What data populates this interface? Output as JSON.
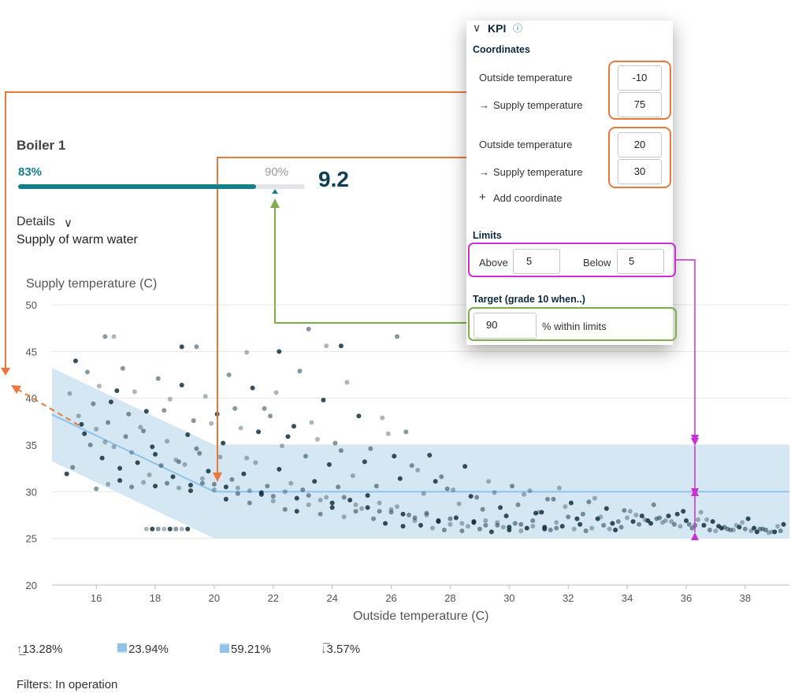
{
  "boiler": {
    "title": "Boiler 1",
    "percent_within": "83%",
    "target_percent": "90%",
    "progress_fraction": 0.83,
    "target_fraction": 0.9,
    "grade": "9.2",
    "details_label": "Details",
    "subtitle": "Supply of warm water"
  },
  "kpi_panel": {
    "title": "KPI",
    "coordinates_heading": "Coordinates",
    "coordinates": [
      {
        "outside_label": "Outside temperature",
        "outside_value": "-10",
        "supply_label": "Supply temperature",
        "supply_value": "75"
      },
      {
        "outside_label": "Outside temperature",
        "outside_value": "20",
        "supply_label": "Supply temperature",
        "supply_value": "30"
      }
    ],
    "add_coordinate_label": "Add coordinate",
    "limits_heading": "Limits",
    "above_label": "Above",
    "above_value": "5",
    "below_label": "Below",
    "below_value": "5",
    "target_heading": "Target (grade 10 when..)",
    "target_value": "90",
    "target_suffix": "% within limits"
  },
  "legend": [
    {
      "icon": "arrow-up-icon",
      "value": "13.28%"
    },
    {
      "icon": "band-lower-icon",
      "value": "23.94%"
    },
    {
      "icon": "band-upper-icon",
      "value": "59.21%"
    },
    {
      "icon": "arrow-down-icon",
      "value": "3.57%"
    }
  ],
  "filters": "Filters: In operation",
  "colors": {
    "teal": "#157f8a",
    "band": "#cfe4f2",
    "center_line": "#8fc3ea",
    "point": "#12303f",
    "annotation_orange": "#e8793a",
    "annotation_magenta": "#cc2fd6",
    "annotation_green": "#7cae4a"
  },
  "chart_data": {
    "type": "scatter",
    "xlabel": "Outside temperature (C)",
    "ylabel": "Supply temperature (C)",
    "xlim": [
      14.5,
      39.5
    ],
    "ylim": [
      20,
      50
    ],
    "xticks": [
      16,
      18,
      20,
      22,
      24,
      26,
      28,
      30,
      32,
      34,
      36,
      38
    ],
    "yticks": [
      20,
      25,
      30,
      35,
      40,
      45,
      50
    ],
    "grid": "horizontal",
    "target_curve": {
      "x": [
        14.5,
        20,
        39.5
      ],
      "y": [
        38.25,
        30,
        30
      ]
    },
    "band_upper": {
      "x": [
        14.5,
        20,
        39.5
      ],
      "y": [
        43.25,
        35,
        35
      ]
    },
    "band_lower": {
      "x": [
        14.5,
        20,
        39.5
      ],
      "y": [
        33.25,
        25,
        25
      ]
    },
    "series": [
      {
        "x": [
          15.0,
          15.2,
          15.4,
          15.6,
          15.8,
          16.0,
          16.2,
          16.4,
          16.6,
          16.8,
          17.0,
          17.2,
          17.4,
          17.6,
          17.8,
          18.0,
          18.2,
          18.4,
          18.6,
          18.8,
          19.0,
          19.2,
          19.4,
          19.6,
          19.8,
          20.0,
          20.2,
          20.4,
          20.6,
          20.8,
          21.0,
          21.2,
          21.4,
          21.6,
          21.8,
          22.0,
          22.2,
          22.4,
          22.6,
          22.8,
          23.0,
          23.2,
          23.4,
          23.6,
          23.8,
          24.0,
          24.2,
          24.4,
          24.6,
          24.8,
          25.0,
          25.2,
          25.4,
          25.6,
          25.8,
          26.0,
          26.2,
          26.4,
          26.6,
          26.8,
          27.0,
          27.2,
          27.4,
          27.6,
          27.8,
          28.0,
          28.2,
          28.4,
          28.6,
          28.8,
          29.0,
          29.2,
          29.4,
          29.6,
          29.8,
          30.0,
          30.2,
          30.4,
          30.6,
          30.8,
          31.0,
          31.2,
          31.4,
          31.6,
          31.8,
          32.0,
          32.2,
          32.4,
          32.6,
          32.8,
          33.0,
          33.2,
          33.4,
          33.6,
          33.8,
          34.0,
          34.2,
          34.4,
          34.6,
          34.8,
          35.0,
          35.2,
          35.4,
          35.6,
          35.8,
          36.0,
          36.2,
          36.4,
          36.6,
          36.8,
          37.0,
          37.2,
          37.4,
          37.6,
          37.8,
          38.0,
          38.2,
          38.4,
          38.6,
          38.8,
          39.0,
          39.2,
          15.1,
          15.5,
          15.9,
          16.3,
          16.7,
          17.1,
          17.5,
          17.9,
          18.3,
          18.7,
          19.1,
          19.5,
          19.9,
          20.3,
          20.7,
          21.1,
          21.5,
          21.9,
          22.3,
          22.7,
          23.1,
          23.5,
          23.9,
          24.3,
          24.7,
          25.1,
          25.5,
          25.9,
          26.3,
          26.7,
          27.1,
          27.5,
          27.9,
          28.3,
          28.7,
          29.1,
          29.5,
          29.9,
          30.3,
          30.7,
          31.1,
          31.5,
          31.9,
          32.3,
          32.7,
          33.1,
          33.5,
          33.9,
          34.3,
          34.7,
          35.1,
          35.5,
          35.9,
          36.3,
          36.7,
          37.1,
          37.5,
          37.9,
          38.3,
          38.7,
          39.1,
          15.3,
          15.7,
          16.1,
          16.5,
          16.9,
          17.3,
          17.7,
          18.1,
          18.5,
          18.9,
          19.3,
          19.7,
          20.1,
          20.5,
          20.9,
          21.3,
          21.7,
          22.1,
          22.5,
          22.9,
          23.3,
          23.7,
          24.1,
          24.5,
          24.9,
          25.3,
          25.7,
          26.1,
          26.5,
          26.9,
          27.3,
          27.7,
          28.1,
          28.5,
          28.9,
          29.3,
          29.7,
          30.1,
          30.5,
          30.9,
          31.3,
          31.7,
          32.1,
          32.5,
          32.9,
          33.3,
          33.7,
          34.1,
          34.5,
          34.9,
          35.3,
          35.7,
          36.1,
          36.5,
          36.9,
          37.3,
          37.7,
          38.1,
          38.5,
          38.9,
          39.3,
          16.0,
          16.4,
          16.8,
          17.2,
          17.6,
          18.0,
          18.4,
          18.8,
          19.2,
          19.6,
          20.0,
          20.4,
          20.8,
          21.2,
          21.6,
          22.0,
          22.4,
          22.8,
          23.2,
          23.6,
          24.0,
          24.4,
          24.8,
          25.2,
          25.6,
          26.0,
          26.4,
          26.8,
          27.2,
          27.6,
          28.0,
          28.4,
          28.8,
          29.2,
          29.6,
          30.0,
          30.4,
          30.8,
          31.2,
          31.6,
          17.7,
          17.9,
          18.1,
          18.3,
          18.5,
          18.7,
          18.9,
          19.1,
          16.3,
          16.6,
          18.9,
          19.4,
          21.1,
          22.2,
          23.2,
          23.8,
          24.3,
          26.2
        ],
        "y": [
          31.9,
          32.6,
          38.1,
          36.2,
          35.0,
          36.7,
          33.6,
          37.4,
          34.8,
          32.5,
          35.9,
          34.2,
          33.1,
          36.5,
          31.8,
          34.0,
          32.8,
          35.4,
          31.6,
          33.2,
          32.9,
          30.1,
          34.6,
          31.4,
          32.2,
          30.8,
          33.7,
          29.2,
          31.3,
          30.4,
          31.9,
          28.8,
          33.1,
          29.9,
          30.6,
          29.0,
          32.4,
          28.1,
          30.9,
          27.9,
          30.2,
          28.6,
          31.1,
          27.6,
          29.4,
          28.3,
          30.5,
          27.3,
          29.1,
          27.9,
          28.2,
          29.6,
          27.1,
          28.8,
          26.6,
          27.8,
          28.4,
          26.3,
          27.5,
          26.9,
          26.4,
          27.7,
          26.1,
          26.8,
          25.9,
          26.5,
          27.2,
          25.8,
          26.3,
          26.7,
          26.0,
          26.9,
          25.7,
          26.4,
          26.2,
          25.9,
          26.6,
          25.8,
          26.1,
          26.9,
          27.8,
          26.2,
          25.9,
          26.7,
          26.3,
          27.3,
          26.0,
          26.5,
          25.8,
          26.1,
          27.1,
          26.4,
          26.0,
          25.9,
          26.2,
          27.2,
          26.8,
          26.5,
          27.0,
          26.6,
          27.1,
          26.7,
          27.4,
          26.5,
          26.3,
          26.9,
          26.1,
          27.0,
          26.4,
          25.9,
          25.8,
          26.1,
          26.0,
          25.9,
          26.2,
          26.0,
          25.8,
          25.7,
          26.0,
          25.6,
          25.7,
          25.8,
          40.5,
          37.2,
          39.4,
          35.3,
          40.8,
          38.3,
          36.9,
          34.8,
          38.7,
          33.4,
          36.1,
          34.1,
          37.3,
          35.2,
          38.9,
          33.6,
          36.4,
          38.1,
          34.9,
          37.0,
          33.8,
          35.6,
          32.9,
          34.4,
          31.7,
          33.2,
          30.6,
          36.2,
          31.4,
          32.8,
          29.8,
          31.1,
          30.3,
          28.7,
          29.5,
          28.1,
          29.9,
          27.4,
          28.6,
          30.1,
          27.8,
          29.2,
          28.4,
          27.1,
          28.9,
          27.3,
          26.6,
          28.0,
          27.5,
          26.9,
          27.2,
          26.8,
          27.9,
          26.4,
          27.0,
          26.3,
          25.9,
          26.7,
          26.1,
          25.9,
          26.3,
          44.0,
          42.8,
          41.3,
          39.6,
          43.2,
          40.7,
          38.6,
          42.1,
          39.9,
          41.4,
          37.6,
          40.2,
          38.3,
          42.5,
          36.8,
          41.1,
          38.9,
          40.6,
          35.9,
          42.9,
          37.4,
          39.8,
          35.2,
          41.7,
          38.1,
          34.6,
          37.9,
          33.8,
          36.4,
          32.3,
          33.9,
          31.6,
          30.2,
          32.7,
          29.4,
          31.1,
          28.3,
          30.6,
          29.7,
          27.7,
          29.2,
          30.4,
          28.8,
          27.6,
          29.3,
          28.2,
          26.8,
          27.9,
          27.4,
          28.6,
          26.9,
          27.6,
          26.5,
          27.8,
          26.8,
          26.2,
          26.4,
          27.1,
          26.0,
          25.7,
          26.5,
          30.3,
          30.8,
          31.2,
          30.5,
          31.0,
          30.6,
          30.9,
          30.4,
          30.7,
          30.9,
          30.2,
          30.5,
          29.8,
          30.1,
          29.7,
          29.5,
          30.0,
          29.3,
          29.6,
          29.1,
          28.8,
          29.4,
          28.6,
          28.3,
          27.9,
          28.1,
          27.6,
          27.2,
          27.5,
          26.9,
          27.1,
          26.6,
          26.8,
          26.4,
          26.7,
          26.2,
          26.5,
          26.3,
          26.0,
          26.1,
          26.0,
          26.0,
          26.0,
          26.0,
          26.0,
          26.0,
          26.0,
          26.0,
          46.6,
          46.6,
          45.5,
          45.5,
          44.9,
          45.0,
          47.4,
          45.6,
          45.6,
          46.6
        ]
      }
    ]
  }
}
